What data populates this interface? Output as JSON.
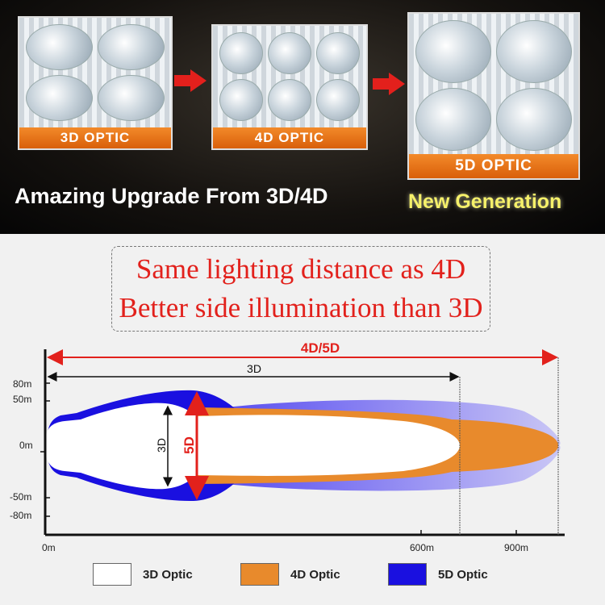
{
  "banner": {
    "optics": [
      {
        "label": "3D OPTIC"
      },
      {
        "label": "4D OPTIC"
      },
      {
        "label": "5D OPTIC"
      }
    ],
    "headline": "Amazing Upgrade From 3D/4D",
    "tagline": "New Generation"
  },
  "callout": {
    "line1": "Same lighting distance as 4D",
    "line2": "Better side illumination than 3D"
  },
  "diagram": {
    "range_4d5d_label": "4D/5D",
    "range_3d_label": "3D",
    "width_3d_label": "3D",
    "width_5d_label": "5D",
    "y_ticks": [
      "80m",
      "50m",
      "0m",
      "-50m",
      "-80m"
    ],
    "x_ticks": [
      "0m",
      "600m",
      "900m"
    ],
    "legend": [
      {
        "label": "3D Optic",
        "color": "#ffffff"
      },
      {
        "label": "4D Optic",
        "color": "#e88a2c"
      },
      {
        "label": "5D Optic",
        "color": "#1a10e0"
      }
    ]
  },
  "colors": {
    "accent_red": "#e2211c",
    "label_orange": "#e8751a",
    "tagline_yellow": "#f5f06a"
  }
}
